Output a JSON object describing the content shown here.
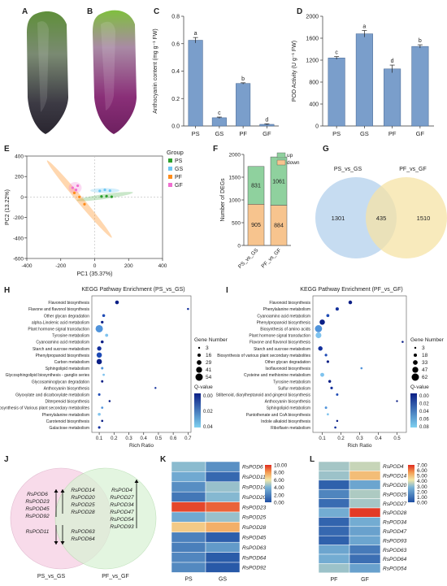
{
  "panels": {
    "A": "A",
    "B": "B",
    "C": "C",
    "D": "D",
    "E": "E",
    "F": "F",
    "G": "G",
    "H": "H",
    "I": "I",
    "J": "J",
    "K": "K",
    "L": "L"
  },
  "colors": {
    "bar_blue": "#7a9ecb",
    "venn_blue": "#bcd6ef",
    "venn_yellow": "#f6e3a6",
    "venn_pink": "#f7d3e6",
    "venn_green": "#d8f2d4",
    "up_green": "#8fd19e",
    "down_orange": "#f7c48e"
  },
  "chart_data": [
    {
      "id": "C",
      "type": "bar",
      "categories": [
        "PS",
        "GS",
        "PF",
        "GF"
      ],
      "values": [
        0.625,
        0.06,
        0.31,
        0.012
      ],
      "errors": [
        0.02,
        0.005,
        0.005,
        0.004
      ],
      "letters": [
        "a",
        "c",
        "b",
        "d"
      ],
      "ylabel": "Anthocyanin content (mg g⁻¹ FW)",
      "ylim": [
        0,
        0.8
      ],
      "yticks": [
        "0.0",
        "0.2",
        "0.4",
        "0.6",
        "0.8"
      ]
    },
    {
      "id": "D",
      "type": "bar",
      "categories": [
        "PS",
        "GS",
        "PF",
        "GF"
      ],
      "values": [
        1240,
        1680,
        1040,
        1450
      ],
      "errors": [
        25,
        60,
        70,
        30
      ],
      "letters": [
        "c",
        "a",
        "d",
        "b"
      ],
      "ylabel": "POD Activity (U g⁻¹ FW)",
      "ylim": [
        0,
        2000
      ],
      "yticks": [
        "0",
        "400",
        "800",
        "1200",
        "1600",
        "2000"
      ]
    },
    {
      "id": "E",
      "type": "scatter",
      "xlabel": "PC1 (35.37%)",
      "ylabel": "PC2 (13.22%)",
      "xlim": [
        -400,
        400
      ],
      "ylim": [
        -600,
        400
      ],
      "xticks": [
        "-400",
        "-200",
        "0",
        "200",
        "400"
      ],
      "yticks": [
        "-600",
        "-400",
        "-200",
        "0",
        "200",
        "400"
      ],
      "legend_title": "Group",
      "series": [
        {
          "name": "PS",
          "color": "#2ca02c",
          "points": [
            [
              40,
              5
            ],
            [
              70,
              8
            ],
            [
              100,
              2
            ]
          ]
        },
        {
          "name": "GS",
          "color": "#6ec6f2",
          "points": [
            [
              30,
              60
            ],
            [
              60,
              70
            ],
            [
              90,
              62
            ]
          ]
        },
        {
          "name": "PF",
          "color": "#ff8c1a",
          "points": [
            [
              -120,
              40
            ],
            [
              -90,
              0
            ],
            [
              -60,
              -70
            ]
          ]
        },
        {
          "name": "GF",
          "color": "#f06ed0",
          "points": [
            [
              -130,
              90
            ],
            [
              -110,
              70
            ],
            [
              -100,
              110
            ]
          ]
        }
      ]
    },
    {
      "id": "F",
      "type": "bar",
      "categories": [
        "PS_vs_GS",
        "PF_vs_GF"
      ],
      "series": [
        {
          "name": "down",
          "values": [
            905,
            884
          ]
        },
        {
          "name": "up",
          "values": [
            831,
            1061
          ]
        }
      ],
      "ylabel": "Number of DEGs",
      "ylim": [
        0,
        2000
      ],
      "yticks": [
        "0",
        "500",
        "1000",
        "1500",
        "2000"
      ]
    },
    {
      "id": "G",
      "type": "venn",
      "sets": [
        "PS_vs_GS",
        "PF_vs_GF"
      ],
      "values": [
        "1301",
        "435",
        "1510"
      ]
    },
    {
      "id": "H",
      "type": "scatter",
      "title": "KEGG Pathway Enrichment (PS_vs_GS)",
      "xlabel": "Rich Ratio",
      "xlim": [
        0.05,
        0.72
      ],
      "xticks": [
        "0.1",
        "0.2",
        "0.3",
        "0.4",
        "0.5",
        "0.6",
        "0.7"
      ],
      "size_legend_title": "Gene Number",
      "size_legend": [
        "3",
        "16",
        "29",
        "41",
        "54"
      ],
      "color_legend_title": "Q-value",
      "color_ticks": [
        "0.00",
        "0.02",
        "0.04"
      ],
      "pathways": [
        "Flavonoid biosynthesis",
        "Flavone and flavonol biosynthesis",
        "Other glycan degradation",
        "alpha-Linolenic acid metabolism",
        "Plant hormone signal transduction",
        "Tyrosine metabolism",
        "Cyanoamino acid metabolism",
        "Starch and sucrose metabolism",
        "Phenylpropanoid biosynthesis",
        "Carbon metabolism",
        "Sphingolipid metabolism",
        "Glycosphingolipid biosynthesis - ganglio series",
        "Glycosaminoglycan degradation",
        "Anthocyanin biosynthesis",
        "Glyoxylate and dicarboxylate metabolism",
        "Diterpenoid biosynthesis",
        "Biosynthesis of Various plant secondary metabolites",
        "Phenylalanine metabolism",
        "Carotenoid biosynthesis",
        "Galactose metabolism"
      ],
      "rich": [
        0.22,
        0.7,
        0.13,
        0.12,
        0.1,
        0.15,
        0.12,
        0.1,
        0.1,
        0.1,
        0.12,
        0.13,
        0.12,
        0.48,
        0.1,
        0.17,
        0.12,
        0.1,
        0.12,
        0.1
      ],
      "genes": [
        20,
        4,
        12,
        10,
        54,
        14,
        12,
        25,
        35,
        35,
        8,
        6,
        7,
        3,
        8,
        4,
        6,
        12,
        5,
        8
      ]
    },
    {
      "id": "I",
      "type": "scatter",
      "title": "KEGG Pathway Enrichment (PF_vs_GF)",
      "xlabel": "Rich Ratio",
      "xlim": [
        0.05,
        0.55
      ],
      "xticks": [
        "0.1",
        "0.2",
        "0.3",
        "0.4",
        "0.5"
      ],
      "size_legend_title": "Gene Number",
      "size_legend": [
        "3",
        "18",
        "33",
        "47",
        "62"
      ],
      "color_legend_title": "Q-value",
      "color_ticks": [
        "0.00",
        "0.02",
        "0.04",
        "0.06",
        "0.08"
      ],
      "pathways": [
        "Flavonoid biosynthesis",
        "Phenylalanine metabolism",
        "Cyanoamino acid metabolism",
        "Phenylpropanoid biosynthesis",
        "Biosynthesis of amino acids",
        "Plant hormone signal transduction",
        "Flavone and flavonol biosynthesis",
        "Starch and sucrose metabolism",
        "Biosynthesis of various plant secondary metabolites",
        "Other glycan degradation",
        "Isoflavonoid biosynthesis",
        "Cysteine and methionine metabolism",
        "Tyrosine metabolism",
        "Sulfur metabolism",
        "Stilbenoid, diarylheptanoid and gingerol biosynthesis",
        "Anthocyanin biosynthesis",
        "Sphingolipid metabolism",
        "Pantothenate and CoA biosynthesis",
        "Indole alkaloid biosynthesis",
        "Riboflavin metabolism"
      ],
      "rich": [
        0.25,
        0.18,
        0.13,
        0.1,
        0.08,
        0.08,
        0.53,
        0.09,
        0.12,
        0.13,
        0.31,
        0.1,
        0.14,
        0.15,
        0.18,
        0.5,
        0.12,
        0.13,
        0.18,
        0.17
      ],
      "genes": [
        22,
        18,
        15,
        40,
        60,
        45,
        4,
        30,
        10,
        10,
        5,
        25,
        12,
        10,
        8,
        3,
        8,
        6,
        4,
        5
      ]
    },
    {
      "id": "J",
      "type": "venn",
      "sets": [
        "PS_vs_GS",
        "PF_vs_GF"
      ],
      "left_up": [
        "RsPOD6",
        "RsPOD23",
        "RsPOD45",
        "RsPOD92"
      ],
      "left_down": [
        "RsPOD11"
      ],
      "center_up": [
        "RsPOD14",
        "RsPOD20",
        "RsPOD25",
        "RsPOD28"
      ],
      "center_down": [
        "RsPOD63",
        "RsPOD64"
      ],
      "right_up": [
        "RsPOD4",
        "RsPOD27",
        "RsPOD34",
        "RsPOD47",
        "RsPOD54",
        "RsPOD93"
      ]
    },
    {
      "id": "K",
      "type": "heatmap",
      "columns": [
        "PS",
        "GS"
      ],
      "rows": [
        "RsPOD6",
        "RsPOD11",
        "RsPOD14",
        "RsPOD20",
        "RsPOD23",
        "RsPOD25",
        "RsPOD28",
        "RsPOD45",
        "RsPOD63",
        "RsPOD64",
        "RsPOD92"
      ],
      "values": [
        [
          4.3,
          2.6
        ],
        [
          3.6,
          1.0
        ],
        [
          2.5,
          4.5
        ],
        [
          1.6,
          4.2
        ],
        [
          9.5,
          9.0
        ],
        [
          3.6,
          4.5
        ],
        [
          6.8,
          7.5
        ],
        [
          2.0,
          0.6
        ],
        [
          1.9,
          3.0
        ],
        [
          2.2,
          0.5
        ],
        [
          2.3,
          0.4
        ]
      ],
      "scale_ticks": [
        "0.00",
        "2.00",
        "4.00",
        "6.00",
        "8.00",
        "10.00"
      ],
      "scale_max": 10
    },
    {
      "id": "L",
      "type": "heatmap",
      "columns": [
        "PF",
        "GF"
      ],
      "rows": [
        "RsPOD4",
        "RsPOD14",
        "RsPOD20",
        "RsPOD25",
        "RsPOD27",
        "RsPOD28",
        "RsPOD34",
        "RsPOD47",
        "RsPOD93",
        "RsPOD63",
        "RsPOD64",
        "RsPOD54"
      ],
      "values": [
        [
          3.3,
          3.7
        ],
        [
          3.2,
          5.0
        ],
        [
          0.5,
          2.4
        ],
        [
          1.5,
          3.4
        ],
        [
          0.8,
          3.3
        ],
        [
          2.6,
          6.8
        ],
        [
          0.6,
          2.6
        ],
        [
          0.7,
          2.3
        ],
        [
          0.5,
          2.4
        ],
        [
          2.4,
          1.2
        ],
        [
          2.6,
          0.9
        ],
        [
          3.2,
          2.3
        ]
      ],
      "scale_ticks": [
        "0.00",
        "1.00",
        "2.00",
        "3.00",
        "4.00",
        "5.00",
        "6.00",
        "7.00"
      ],
      "scale_max": 7
    }
  ]
}
